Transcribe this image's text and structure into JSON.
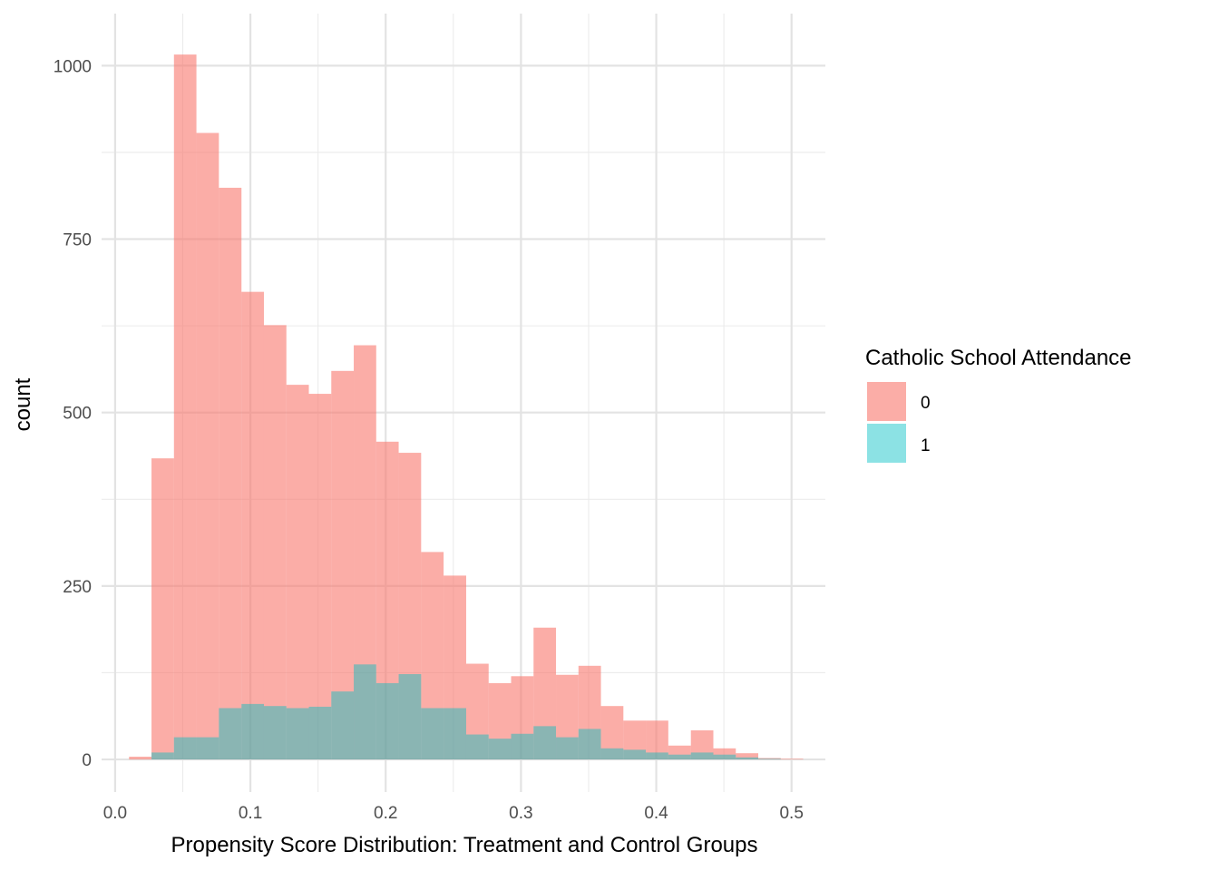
{
  "chart_data": {
    "type": "bar",
    "subtype": "overlapping-histogram",
    "title": "",
    "xlabel": "Propensity Score Distribution: Treatment and Control Groups",
    "ylabel": "count",
    "xlim": [
      -0.01,
      0.525
    ],
    "ylim": [
      -47,
      1075
    ],
    "x_ticks": [
      {
        "value": 0.0,
        "label": "0.0"
      },
      {
        "value": 0.1,
        "label": "0.1"
      },
      {
        "value": 0.2,
        "label": "0.2"
      },
      {
        "value": 0.3,
        "label": "0.3"
      },
      {
        "value": 0.4,
        "label": "0.4"
      },
      {
        "value": 0.5,
        "label": "0.5"
      }
    ],
    "y_ticks": [
      {
        "value": 0,
        "label": "0"
      },
      {
        "value": 250,
        "label": "250"
      },
      {
        "value": 500,
        "label": "500"
      },
      {
        "value": 750,
        "label": "750"
      },
      {
        "value": 1000,
        "label": "1000"
      }
    ],
    "grid": true,
    "legend": {
      "title": "Catholic School Attendance",
      "position": "right",
      "entries": [
        "0",
        "1"
      ]
    },
    "bin_edges": [
      0.0103,
      0.0269,
      0.0435,
      0.0601,
      0.0767,
      0.0934,
      0.11,
      0.1266,
      0.1432,
      0.1598,
      0.1764,
      0.193,
      0.2096,
      0.2262,
      0.2428,
      0.2595,
      0.2761,
      0.2927,
      0.3093,
      0.3259,
      0.3425,
      0.3591,
      0.3757,
      0.3923,
      0.4089,
      0.4256,
      0.4422,
      0.4588,
      0.4754,
      0.492,
      0.5086
    ],
    "series": [
      {
        "name": "0",
        "color": "#F8766D",
        "opacity": 0.6,
        "values": [
          4,
          434,
          1016,
          903,
          824,
          674,
          626,
          540,
          527,
          560,
          597,
          458,
          442,
          299,
          265,
          138,
          110,
          120,
          190,
          122,
          135,
          77,
          56,
          56,
          20,
          42,
          16,
          9,
          2,
          1
        ]
      },
      {
        "name": "1",
        "color": "#00BFC4",
        "opacity": 0.45,
        "values": [
          0,
          10,
          32,
          32,
          74,
          80,
          77,
          74,
          76,
          98,
          137,
          110,
          123,
          74,
          74,
          36,
          30,
          37,
          48,
          32,
          44,
          16,
          14,
          10,
          7,
          10,
          7,
          3,
          1,
          0
        ]
      }
    ]
  }
}
